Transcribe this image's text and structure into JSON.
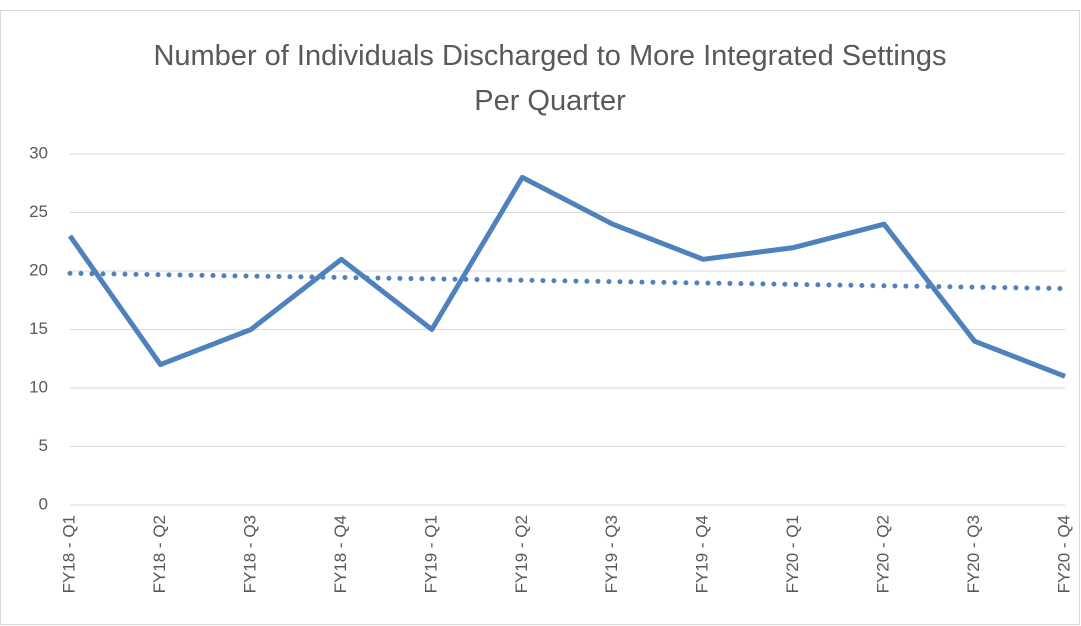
{
  "chart_data": {
    "type": "line",
    "title": "Number of Individuals Discharged to More Integrated Settings Per Quarter",
    "categories": [
      "FY18 - Q1",
      "FY18 - Q2",
      "FY18 - Q3",
      "FY18 - Q4",
      "FY19 - Q1",
      "FY19 - Q2",
      "FY19 - Q3",
      "FY19 - Q4",
      "FY20 - Q1",
      "FY20 - Q2",
      "FY20 - Q3",
      "FY20 - Q4"
    ],
    "values": [
      23,
      12,
      15,
      21,
      15,
      28,
      24,
      21,
      22,
      24,
      14,
      11
    ],
    "color": "#4f81bd",
    "trendline": {
      "type": "linear",
      "values": [
        19.8,
        18.5
      ],
      "color": "#4f81bd"
    },
    "ylim": [
      0,
      30
    ],
    "yticks": [
      0,
      5,
      10,
      15,
      20,
      25,
      30
    ],
    "grid": true
  }
}
